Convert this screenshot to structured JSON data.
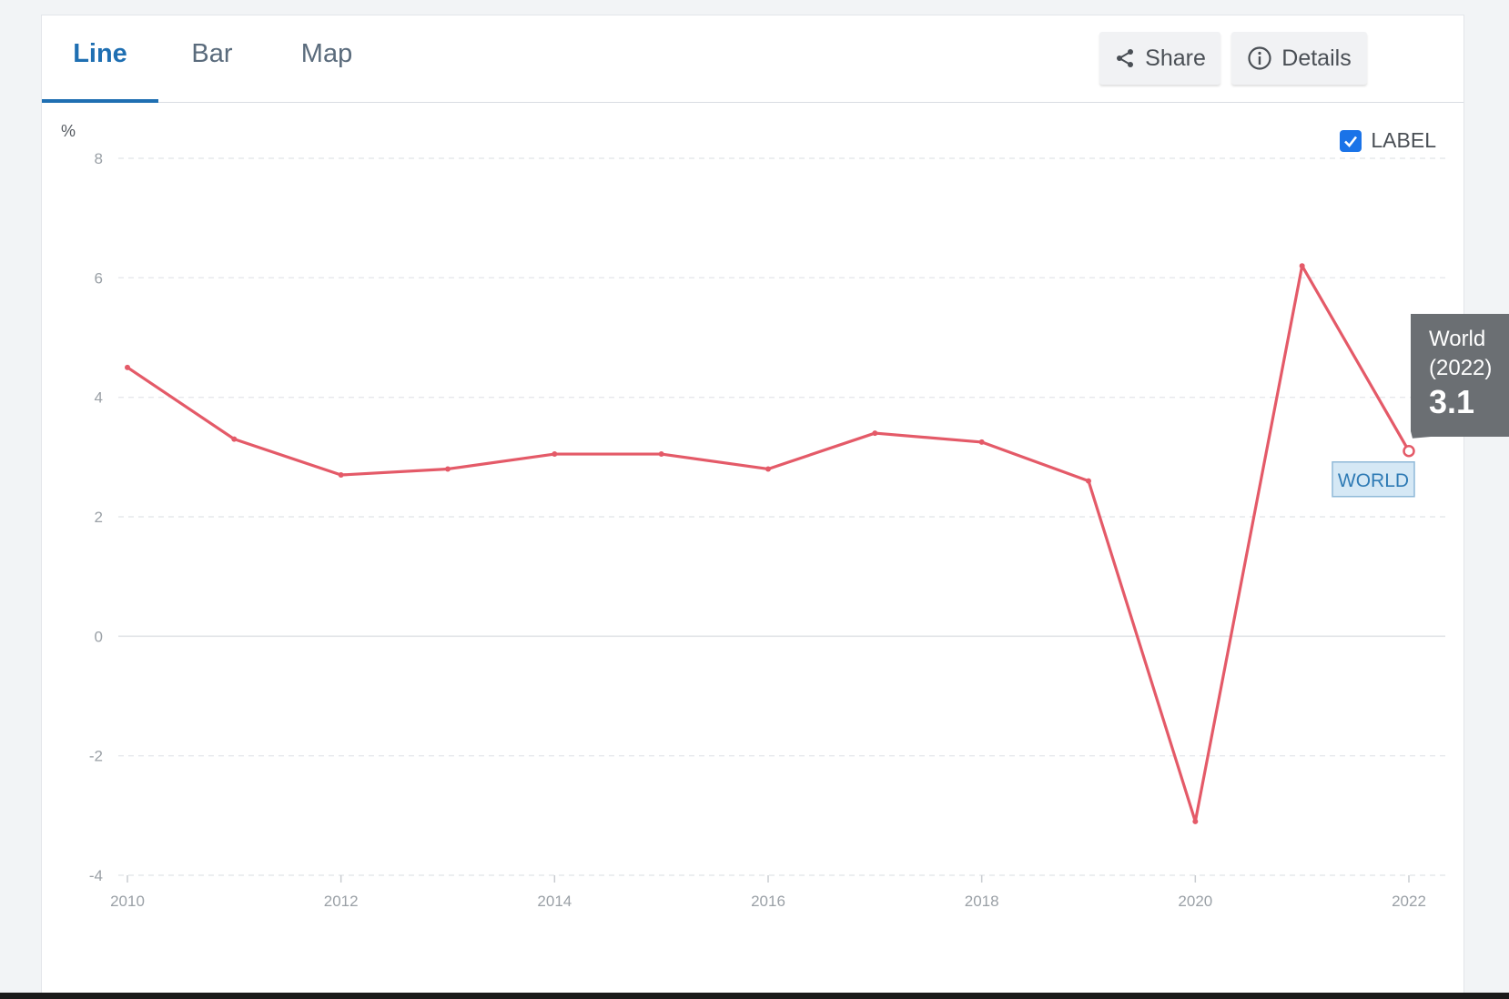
{
  "tabs": [
    {
      "label": "Line",
      "active": true
    },
    {
      "label": "Bar",
      "active": false
    },
    {
      "label": "Map",
      "active": false
    }
  ],
  "actions": {
    "share_label": "Share",
    "details_label": "Details",
    "share_icon": "share-icon",
    "details_icon": "info-icon"
  },
  "label_toggle": {
    "label": "LABEL",
    "checked": true
  },
  "tooltip": {
    "name": "World",
    "period": "(2022)",
    "value": "3.1"
  },
  "series_label": "WORLD",
  "colors": {
    "accent": "#1f6fb2",
    "line": "#e45a68",
    "tooltip_bg": "#6b6f73",
    "checkbox": "#1a73e8",
    "series_label_bg": "#d5e8f5",
    "series_label_border": "#8fb9d8"
  },
  "chart_data": {
    "type": "line",
    "ylabel": "%",
    "xlabel": "",
    "title": "",
    "ylim": [
      -4,
      8
    ],
    "yticks": [
      8,
      6,
      4,
      2,
      0,
      -2,
      -4
    ],
    "xlim": [
      2010,
      2022
    ],
    "xticks": [
      2010,
      2012,
      2014,
      2016,
      2018,
      2020,
      2022
    ],
    "grid": true,
    "x": [
      2010,
      2011,
      2012,
      2013,
      2014,
      2015,
      2016,
      2017,
      2018,
      2019,
      2020,
      2021,
      2022
    ],
    "series": [
      {
        "name": "WORLD",
        "values": [
          4.5,
          3.3,
          2.7,
          2.8,
          3.05,
          3.05,
          2.8,
          3.4,
          3.25,
          2.6,
          -3.1,
          6.2,
          3.1
        ]
      }
    ]
  }
}
